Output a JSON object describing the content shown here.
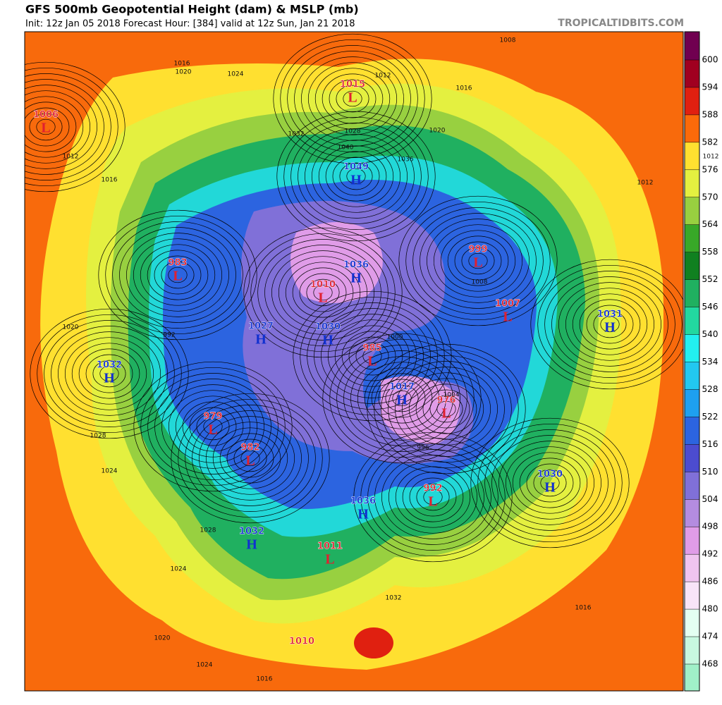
{
  "header": {
    "title": "GFS 500mb Geopotential Height (dam) & MSLP (mb)",
    "subtitle": "Init: 12z Jan 05 2018   Forecast Hour: [384]   valid at 12z Sun, Jan 21 2018",
    "site": "TROPICALTIDBITS.COM"
  },
  "colorbar": {
    "ticks": [
      468,
      474,
      480,
      486,
      492,
      498,
      504,
      510,
      516,
      522,
      528,
      534,
      540,
      546,
      552,
      558,
      564,
      570,
      576,
      582,
      588,
      594,
      600
    ],
    "colors": [
      "#a0f0c8",
      "#c8f8e0",
      "#e4fff2",
      "#f8e4f8",
      "#f0c4f0",
      "#e09ce8",
      "#b48ce0",
      "#8070d8",
      "#4c4cd0",
      "#2c64e0",
      "#1ea0f0",
      "#22c8f0",
      "#22f0f0",
      "#22d8a0",
      "#20b060",
      "#108020",
      "#38a828",
      "#98d040",
      "#e4f040",
      "#ffe030",
      "#fb6a0a",
      "#e02010",
      "#a00020",
      "#700050"
    ]
  },
  "centers": [
    {
      "kind": "L",
      "value": 1006
    },
    {
      "kind": "L",
      "value": 1015
    },
    {
      "kind": "H",
      "value": 1049
    },
    {
      "kind": "L",
      "value": 983
    },
    {
      "kind": "L",
      "value": 999
    },
    {
      "kind": "H",
      "value": 1036
    },
    {
      "kind": "L",
      "value": 1010
    },
    {
      "kind": "L",
      "value": 1007
    },
    {
      "kind": "H",
      "value": 1031
    },
    {
      "kind": "H",
      "value": 1027
    },
    {
      "kind": "H",
      "value": 1030
    },
    {
      "kind": "L",
      "value": 985
    },
    {
      "kind": "H",
      "value": 1032
    },
    {
      "kind": "H",
      "value": 1017
    },
    {
      "kind": "L",
      "value": 976
    },
    {
      "kind": "L",
      "value": 979
    },
    {
      "kind": "L",
      "value": 982
    },
    {
      "kind": "H",
      "value": 1030
    },
    {
      "kind": "L",
      "value": 992
    },
    {
      "kind": "H",
      "value": 1036
    },
    {
      "kind": "H",
      "value": 1032
    },
    {
      "kind": "L",
      "value": 1011
    },
    {
      "value": 1010
    }
  ],
  "isobar_labels": [
    1012,
    1016,
    1020,
    1024,
    1008,
    1012,
    1016,
    1020,
    1028,
    1032,
    1040,
    1036,
    1012,
    1016,
    1020,
    1024,
    1028,
    1024,
    1016,
    1012,
    1008,
    1004,
    1000,
    996,
    992,
    1020,
    1024,
    1028,
    1032,
    1016
  ]
}
